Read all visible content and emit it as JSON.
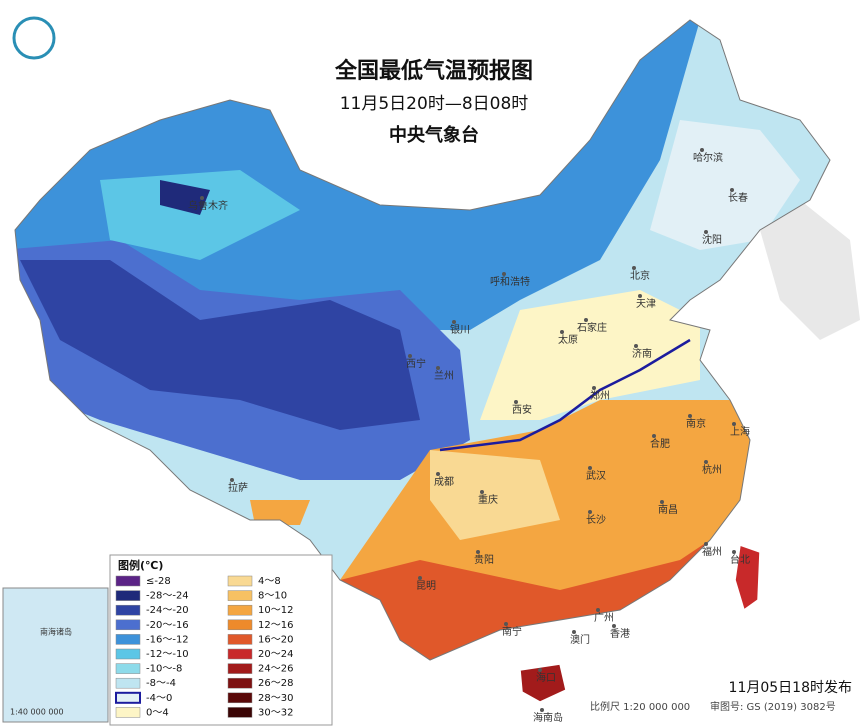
{
  "header": {
    "title": "全国最低气温预报图",
    "subtitle": "11月5日20时—8日08时",
    "agency": "中央气象台"
  },
  "legend": {
    "title": "图例(℃)",
    "items": [
      {
        "label": "≤-28",
        "color": "#5b2386"
      },
      {
        "label": "-28～-24",
        "color": "#1f2a7a"
      },
      {
        "label": "-24～-20",
        "color": "#2f44a3"
      },
      {
        "label": "-20～-16",
        "color": "#4c6fcf"
      },
      {
        "label": "-16～-12",
        "color": "#3d92da"
      },
      {
        "label": "-12～-10",
        "color": "#5cc6e6"
      },
      {
        "label": "-10～-8",
        "color": "#8ddbea"
      },
      {
        "label": "-8～-4",
        "color": "#bfe5f1"
      },
      {
        "label": "-4～0",
        "color": "#e2f0f6"
      },
      {
        "label": "0～4",
        "color": "#fdf5c6"
      },
      {
        "label": "4～8",
        "color": "#f9d993"
      },
      {
        "label": "8～10",
        "color": "#f7c163"
      },
      {
        "label": "10～12",
        "color": "#f4a641"
      },
      {
        "label": "12～16",
        "color": "#ee8a2b"
      },
      {
        "label": "16～20",
        "color": "#e0582a"
      },
      {
        "label": "20～24",
        "color": "#c8292a"
      },
      {
        "label": "24～26",
        "color": "#a21b1b"
      },
      {
        "label": "26～28",
        "color": "#7d1111"
      },
      {
        "label": "28～30",
        "color": "#5a0909"
      },
      {
        "label": "30～32",
        "color": "#3a0404"
      }
    ]
  },
  "cities": [
    "乌鲁木齐",
    "哈尔滨",
    "长春",
    "沈阳",
    "呼和浩特",
    "北京",
    "天津",
    "银川",
    "石家庄",
    "太原",
    "济南",
    "西宁",
    "兰州",
    "西安",
    "郑州",
    "南京",
    "合肥",
    "上海",
    "杭州",
    "拉萨",
    "成都",
    "重庆",
    "武汉",
    "南昌",
    "长沙",
    "福州",
    "贵阳",
    "昆明",
    "台北",
    "南宁",
    "广州",
    "香港",
    "澳门",
    "海口",
    "海南岛"
  ],
  "inset": {
    "label": "南海诸岛",
    "scale": "1:40 000 000"
  },
  "footer": {
    "issued": "11月05日18时发布",
    "scale": "比例尺 1:20 000 000",
    "approval": "审图号: GS (2019) 3082号"
  }
}
